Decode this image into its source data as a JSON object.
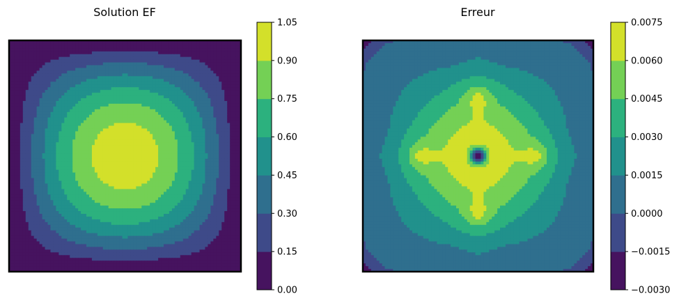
{
  "chart_data": [
    {
      "type": "heatmap",
      "title": "Solution EF",
      "xlabel": "",
      "ylabel": "",
      "xlim": [
        0,
        1
      ],
      "ylim": [
        0,
        1
      ],
      "axes_ticks": false,
      "colormap": "viridis",
      "colorbar": {
        "levels": [
          0.0,
          0.15,
          0.3,
          0.45,
          0.6,
          0.75,
          0.9,
          1.05
        ],
        "tick_labels": [
          "0.00",
          "0.15",
          "0.30",
          "0.45",
          "0.60",
          "0.75",
          "0.90",
          "1.05"
        ],
        "colors": [
          "#46135f",
          "#3e4a89",
          "#2f6f8e",
          "#21918c",
          "#2cb17e",
          "#74d055",
          "#d3e02a"
        ]
      },
      "field": "sin(pi*x)*sin(pi*y)"
    },
    {
      "type": "heatmap",
      "title": "Erreur",
      "xlabel": "",
      "ylabel": "",
      "xlim": [
        0,
        1
      ],
      "ylim": [
        0,
        1
      ],
      "axes_ticks": false,
      "colormap": "viridis",
      "colorbar": {
        "levels": [
          -0.003,
          -0.0015,
          0.0,
          0.0015,
          0.003,
          0.0045,
          0.006,
          0.0075
        ],
        "tick_labels": [
          "−0.0030",
          "−0.0015",
          "0.0000",
          "0.0015",
          "0.0030",
          "0.0045",
          "0.0060",
          "0.0075"
        ],
        "colors": [
          "#46135f",
          "#3e4a89",
          "#2f6f8e",
          "#21918c",
          "#2cb17e",
          "#74d055",
          "#d3e02a"
        ]
      },
      "field": "error"
    }
  ]
}
